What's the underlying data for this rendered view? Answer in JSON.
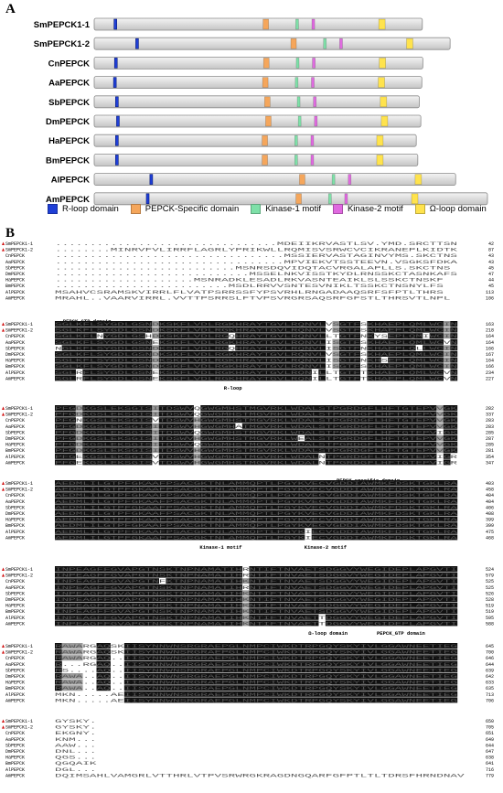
{
  "panelA": {
    "label": "A",
    "sequences": [
      {
        "name": "SmPEPCK1-1",
        "len": 650,
        "rloop": 42,
        "pepck": 340,
        "k1": 402,
        "k2": 434,
        "omega": 570
      },
      {
        "name": "SmPEPCK1-2",
        "len": 705,
        "rloop": 85,
        "pepck": 395,
        "k1": 457,
        "k2": 489,
        "omega": 625
      },
      {
        "name": "CnPEPCK",
        "len": 651,
        "rloop": 43,
        "pepck": 341,
        "k1": 403,
        "k2": 435,
        "omega": 571
      },
      {
        "name": "AaPEPCK",
        "len": 649,
        "rloop": 41,
        "pepck": 339,
        "k1": 401,
        "k2": 433,
        "omega": 569
      },
      {
        "name": "SbPEPCK",
        "len": 644,
        "rloop": 45,
        "pepck": 343,
        "k1": 405,
        "k2": 437,
        "omega": 573
      },
      {
        "name": "DmPEPCK",
        "len": 647,
        "rloop": 47,
        "pepck": 345,
        "k1": 407,
        "k2": 439,
        "omega": 575
      },
      {
        "name": "HaPEPCK",
        "len": 638,
        "rloop": 45,
        "pepck": 338,
        "k1": 400,
        "k2": 432,
        "omega": 566
      },
      {
        "name": "BmPEPCK",
        "len": 641,
        "rloop": 45,
        "pepck": 338,
        "k1": 400,
        "k2": 432,
        "omega": 566
      },
      {
        "name": "AlPEPCK",
        "len": 716,
        "rloop": 113,
        "pepck": 412,
        "k1": 474,
        "k2": 506,
        "omega": 642
      },
      {
        "name": "AmPEPCK",
        "len": 779,
        "rloop": 106,
        "pepck": 405,
        "k1": 467,
        "k2": 499,
        "omega": 635
      }
    ],
    "legend": [
      {
        "label": "R-loop domain",
        "color": "#1f3fd6"
      },
      {
        "label": "PEPCK-Specific domain",
        "color": "#f5a65b"
      },
      {
        "label": "Kinase-1 motif",
        "color": "#7ee0a8"
      },
      {
        "label": "Kinase-2 motif",
        "color": "#e06ae0"
      },
      {
        "label": "Ω-loop domain",
        "color": "#ffe34d"
      }
    ]
  },
  "panelB": {
    "label": "B",
    "names": [
      "SmPEPCK1-1",
      "SmPEPCK1-2",
      "CnPEPCK",
      "AaPEPCK",
      "SbPEPCK",
      "DmPEPCK",
      "HaPEPCK",
      "BmPEPCK",
      "AlPEPCK",
      "AmPEPCK"
    ],
    "marked": [
      0,
      1
    ],
    "blocks": [
      {
        "rows": [
          "................................MDEIIKRVASTLSV.YMD.SRCTTSN",
          "........MINRVFVLIRRFLAGRLYPRIKWLLRQMISVSRWCVCIKRANEPLKIDTK",
          ".................................MSSIERVASTAGINVYMS.SKCTNS",
          ".................................MPVIEKVTSSTEEVN.VSGKSFDKA",
          "..........................MSNRSDQVIDQTACVRGALAPLLS.SKCTNS",
          "............................MSSELNKVISSTKYDLRNSSKCTASNKAFS",
          "....................MSNRADKLESADLRKVASNTEAIKLSLSSKCTNSKF",
          ".........................MSDLRRVVSNTESVNIKLTSSKCTNSNYLFS",
          "MSAHVCSRAMSKVIRRLFLVATPSRRSSFYPSVRHLRNGADAAQSRFSFPTLTHRS",
          "MRAHL..VAARVIRRL.VVTTPSRRSLFTVPSVRGRSAQSRFGFSTLTHRSVTLNPL"
        ],
        "ends": [
          42,
          87,
          43,
          43,
          45,
          47,
          44,
          45,
          113,
          106
        ],
        "annots": []
      },
      {
        "rows": [
          "SGLKFLSYGDLGSNDKSKFLVDLRGKHRAYTGVLRQNVLVSGTFSKHAEPLQMLWCIN",
          "SGLKFLSYGDLGSNDKSKFLVDLRGKHRAYTGVLRQNVLVSGTFSKHAEPLQMLWCIN",
          "SGLKFLNYGDLGSHDKSKFLVDLRGQHRAYTGVLRQNVLLTGTFNKYSEPLQMIWCIN",
          "SGLKFLSYGDLGSNEKSKFLVDLRGKHRAYTGVLRQNVLISGTFSKHAEPLQMLWCVN",
          "NGLKFLSYGDLGSNDKSKFLVDLRGQHRAYTGVLRQNVLISGTFNKHAEPLQLLWCIN",
          "SGLKFLSYGDLGSNDKSKFLVDLRGKHRAYTGVLRQNVLVSGTFSKHAEPLQMLWCIN",
          "SGLKFLSYGDLGSNDKSKFLVDLRGKHRAYTGVLRQNVLISGTFNKHSEPLQMLWCIN",
          "SGLKFLSYGDLGSNDKSKFLVDLRGKHRAYTGVLRQNVLISGTFSKHAEPLQMLWCIN",
          "SGLRFLSYGDLGSNEKSKFLVDLRGKHRAYTGVLRQNILLTGTFTKHAEPLQMLWCVN",
          "SGLRFLSYGDLGSNEKSKFLVDLRGKHRAYTGVLRQNILLTGTFTKHAEPLQMLWCVN"
        ],
        "ends": [
          163,
          218,
          164,
          164,
          166,
          167,
          164,
          166,
          234,
          227
        ],
        "annots": [
          {
            "text": "PEPCK_GTP domain",
            "pos": 0.02,
            "arrow": "right"
          },
          {
            "text": "R-loop",
            "pos": 0.42,
            "below": true
          }
        ]
      },
      {
        "rows": [
          "PFGDKGSLEKSGISITDSWVQGWGMHSTMGVRKLWDALSTPGRDGFLHFTGTEPVVGK",
          "PFGDKGSLEKSGISITDSWVQGWGMHSTMGVRKLWDALSTPGRDGFLHFTGTEPVVGK",
          "PFGNKGSLEKSGISVTDSWVHGWGMHSTMGVRKLWDALSTPGRDGFLHFTGTEPVVGK",
          "PFGDKGSLEKSGISITDSWVHGWGMHATMGVRKLWDALSTPGRDGFLHFTGTEPVVGK",
          "PFGDKGSLEKSGISITDSWVQGWGMHSTMGVRKLWDALSTPGRDGFLHFTGTEPVIGK",
          "PFGDKGSLEKSGISITDSWVHGWGMHSTMGVRKLWEALSTPGRDGFLHFTGTEPVVGK",
          "PFGDKGSLEKSGISITDSWVQGWGMHSTMGVRKLWDALSTPGRDGFLHFTGTEPVVGK",
          "PFGDKGSLEKSGISITDSWVHGWGMHSTMGVRKLWDALSTPGRDGFLHFTGTEPVVGK",
          "PFGEKGSLEKSGISVTDSWVHGWGMHSTMGVRKLWDALNTPGRDGFLHFTGTEPVIGR",
          "PFGEKGSLEKSGISVTDSWVHGWGMHSTMGVRKLWDALNTPGRDGFLHFTGTEPVIGR"
        ],
        "ends": [
          282,
          337,
          283,
          283,
          285,
          287,
          285,
          281,
          354,
          347
        ],
        "annots": []
      },
      {
        "rows": [
          "AEDMLILGTPFGKAAFPSACGKTNLAMMQPTLPGYKVECVGDDIAWMKFDSKTGKLRA",
          "AEDMLILGTPFGKAAFPSACGKTNLAMMQPTLPGYKVECVGDDIAWMKFDSKTGKLRA",
          "AEDMLILGTPFGKAAFPSACGKTNLAMMQPTLPGYKVECVGDDIAWMKFDSKTGKLRA",
          "AEDMLILGTPFGKAAFPSACGKTNLAMMQPTLPGYKVECVGDDIAWMKFDSKTGKLRA",
          "AEDMLILGTPFGKAAFPSACGKTNLAMMQPTLPGYKVECVGDDIAWMKFDSKTGKLRA",
          "AEDMLILGTPFGKAAFPSACGKTNLAMMQPTLPGYKVECVGDDIAWMKFDSKTGKLRA",
          "AEDMLILGTPFGKAAFPSACGKTNLAMMQPTLPGYKVECVGDDIAWMKFDSKTGKLRA",
          "AEDMLILGTPFGKAAFPSACGKTNLAMMQPTLPGYKVECVGDDIAWMKFDSKTGKLRA",
          "AEDMLILGTPFGKAAFPSACGKTNLAMMQPTLPGYKIECVGDDIAWMKFDSKTGKLRA",
          "AEDMLILGTPFGKAAFPSACGKTNLAMMQPTLPGYKIECVGDDIAWMKFDSKTGKLRA"
        ],
        "ends": [
          403,
          458,
          404,
          404,
          406,
          408,
          399,
          399,
          475,
          468
        ],
        "annots": [
          {
            "text": "PEPCK-specific domain",
            "pos": 0.7,
            "above": true
          },
          {
            "text": "Kinase-1 motif",
            "pos": 0.36,
            "below": true
          },
          {
            "text": "Kinase-2 motif",
            "pos": 0.62,
            "below": true
          }
        ]
      },
      {
        "rows": [
          "INPEAGFFGVAPGTNSKTNPNAMATIHRNTIFTNVAETSDGGVYWEGIDEPLAPGVTI",
          "INPEAGFFGVAPGTNSKTNPNAMATIHRNTIFTNVAETSDGGVYWEGIDEPLAPGVTI",
          "INPEAGFFGVAPGTNFKTNPNAMATIHKNTIFTNVAETSDGGVYWEGIDEPLAPGVTI",
          "INPEAGFFGVAPGTNSKTNPNAMATIHRNTIFTNVAETSDGGVYWEGIDEPLAPGVTI",
          "INPEAGFFGVAPGTNSKTNPNAMATIHKNTIFTNVAETSDGGVYWEGIDEPLAPGVTI",
          "INPEAGFFGVAPGTNSKTNPNAMATIHKNTIFTNVAETSDGGVYWEGIDEPLAPGVTI",
          "INPEAGFFGVAPGTNSKTNPNAMATIHKNTIFTNVAETSDGGVYWEGIDEPLAPGVTI",
          "INPEAGFFGVAPGTNSKTNPNAMATIHKNTIFTNVAETSDGGVYWEGIDEPLAPGVTI",
          "INPEAGFFGVAPGTNSKTNPNAMATIHKNTIFTNVAETTDGGVYWEGIDEPLAPGVTI",
          "INPEAGFFGVAPGTNSKTNPNAMATIHKNTIFTNVAETTDGGVYWEGIDEPLAPGVTI"
        ],
        "ends": [
          524,
          579,
          525,
          525,
          526,
          528,
          519,
          519,
          595,
          588
        ],
        "annots": [
          {
            "text": "Ω-loop domain",
            "pos": 0.63,
            "below": true
          },
          {
            "text": "PEPCK_GTP domain",
            "pos": 0.8,
            "below": true,
            "arrow": "left"
          }
        ]
      },
      {
        "rows": [
          "RAWARGAQSKIISYNNWNSRGRAEPGLNMPCIWKDTRPGQYSKYIVLGGAWNEETIEG",
          "RAWARGAQSKIISYNNWNSRGRAEPGLNMPCIWKDTRPGQYSKYIVLGGAWNEETIEG",
          "RAWARGAQ..IISYNNWNSRGRAEPGLNMPCIWKDTRPGQYSKYIVLGGAWNEETIEG",
          "R...RGAQ..IISYNNWNSRGRAEPGLNMPCIWKDTRPGQYSKYIVLGGAWNEETIEG",
          "RS....AQ..IISYNNWNSRGRAEPGLNMPCIWKDTRPGQYSKYIVLGGAWNEETIEG",
          "RAWA..AQ..IISYNNWNSRGRAEPGLNMPCIWKDTRPGQYSKYIVLGGAWNEETIEG",
          "RAWA..AQ..IISYNNWNSRGRAEPGLNMPCIWKDTRPGQYSKYIVLGGAWNEETIEG",
          "RAWA..AQ..IISYNNWNSRGRAEPGLNMPCIWKDTRPGQYSKYIVLGGAWNEETIEG",
          "MKN.....AEIISYNNWNSRGRAEPGLNMPCIWKDTRPGQYSKYIVLGGAWNEETIEG",
          "MKN.....AEIISYNNWNSRGRAEPGLNMPCIWKDTRPGQYSKYIVLGGAWNEETIEG"
        ],
        "ends": [
          645,
          700,
          646,
          644,
          639,
          642,
          633,
          635,
          713,
          706
        ],
        "annots": []
      },
      {
        "rows": [
          "GYSKY.",
          "GYSKY.",
          "EKGNY.",
          "KNM...",
          "AAW...",
          "DNL...",
          "QGS...",
          "QGQAIK",
          "DGL...",
          "DQIMSAHLVAMGRLVTTHRLVTPVSRWRGKRAGDNGQARFGFPTLTLTDRSFHRNDNAV"
        ],
        "ends": [
          650,
          705,
          651,
          649,
          644,
          647,
          638,
          641,
          716,
          779
        ],
        "annots": []
      }
    ]
  }
}
